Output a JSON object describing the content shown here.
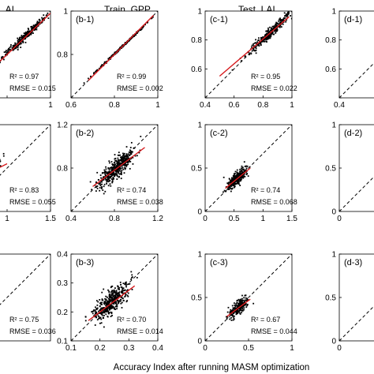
{
  "column_titles": [
    "Train_GPP",
    "Test_LAI"
  ],
  "column_title_partial": "_AI",
  "xlabel": "Accuracy Index after running MASM optimization",
  "legend_r2_label": "R² =",
  "legend_rmse_label": "RMSE =",
  "chart_data": [
    {
      "id": "a-1",
      "type": "scatter",
      "label": "",
      "r2": "0.97",
      "rmse": "0.015",
      "xlim": [
        0.6,
        1.0
      ],
      "ylim": [
        0.6,
        1.0
      ],
      "xticks": [
        "",
        "",
        "1"
      ],
      "yticks": [],
      "fit": [
        [
          0.6,
          0.61
        ],
        [
          1.0,
          0.99
        ]
      ],
      "cluster": {
        "center": [
          0.88,
          0.88
        ],
        "spread": 0.05,
        "noise": 0.008,
        "n": 280
      }
    },
    {
      "id": "b-1",
      "type": "scatter",
      "label": "(b-1)",
      "r2": "0.99",
      "rmse": "0.002",
      "xlim": [
        0.6,
        1.0
      ],
      "ylim": [
        0.6,
        1.0
      ],
      "xticks": [
        "0.6",
        "0.8",
        "1"
      ],
      "yticks": [
        "",
        "0.8",
        "1"
      ],
      "fit": [
        [
          0.68,
          0.68
        ],
        [
          0.98,
          0.98
        ]
      ],
      "cluster": {
        "center": [
          0.83,
          0.83
        ],
        "spread": 0.06,
        "noise": 0.002,
        "n": 260
      }
    },
    {
      "id": "c-1",
      "type": "scatter",
      "label": "(c-1)",
      "r2": "0.95",
      "rmse": "0.022",
      "xlim": [
        0.4,
        1.0
      ],
      "ylim": [
        0.4,
        1.0
      ],
      "xticks": [
        "0.4",
        "0.6",
        "0.8",
        "1"
      ],
      "yticks": [
        "",
        "0.6",
        "0.8",
        "1"
      ],
      "fit": [
        [
          0.5,
          0.55
        ],
        [
          0.98,
          0.96
        ]
      ],
      "cluster": {
        "center": [
          0.85,
          0.85
        ],
        "spread": 0.07,
        "noise": 0.015,
        "n": 300
      }
    },
    {
      "id": "d-1",
      "type": "scatter",
      "label": "(d-1)",
      "r2": "",
      "rmse": "",
      "xlim": [
        0.4,
        1.0
      ],
      "ylim": [
        0.4,
        1.0
      ],
      "xticks": [
        "0.4"
      ],
      "yticks": [
        "",
        "0.6",
        "0.8",
        "1"
      ],
      "fit": null,
      "cluster": null
    },
    {
      "id": "a-2",
      "type": "scatter",
      "label": "",
      "r2": "0.83",
      "rmse": "0.055",
      "xlim": [
        0.5,
        1.5
      ],
      "ylim": [
        0.5,
        1.5
      ],
      "xticks": [
        "",
        "1",
        "1.5"
      ],
      "yticks": [],
      "fit": [
        [
          0.5,
          0.8
        ],
        [
          1.0,
          1.05
        ]
      ],
      "cluster": {
        "center": [
          0.75,
          0.92
        ],
        "spread": 0.08,
        "noise": 0.03,
        "n": 120
      }
    },
    {
      "id": "b-2",
      "type": "scatter",
      "label": "(b-2)",
      "r2": "0.74",
      "rmse": "0.038",
      "xlim": [
        0.4,
        1.2
      ],
      "ylim": [
        0.4,
        1.2
      ],
      "xticks": [
        "0.4",
        "0.8",
        "1.2"
      ],
      "yticks": [
        "",
        "0.8",
        "1.2"
      ],
      "fit": [
        [
          0.6,
          0.63
        ],
        [
          1.08,
          0.99
        ]
      ],
      "cluster": {
        "center": [
          0.82,
          0.8
        ],
        "spread": 0.08,
        "noise": 0.04,
        "n": 420
      }
    },
    {
      "id": "c-2",
      "type": "scatter",
      "label": "(c-2)",
      "r2": "0.74",
      "rmse": "0.068",
      "xlim": [
        0.0,
        1.5
      ],
      "ylim": [
        0.0,
        1.5
      ],
      "xticks": [
        "0",
        "0.5",
        "1",
        "1.5"
      ],
      "yticks": [
        "0",
        "0.5",
        "1"
      ],
      "fit": [
        [
          0.35,
          0.4
        ],
        [
          0.78,
          0.75
        ]
      ],
      "cluster": {
        "center": [
          0.55,
          0.57
        ],
        "spread": 0.08,
        "noise": 0.05,
        "n": 320
      }
    },
    {
      "id": "d-2",
      "type": "scatter",
      "label": "(d-2)",
      "r2": "",
      "rmse": "",
      "xlim": [
        0.0,
        1.5
      ],
      "ylim": [
        0.0,
        1.5
      ],
      "xticks": [
        "0"
      ],
      "yticks": [
        "0",
        "0.5",
        "1"
      ],
      "fit": null,
      "cluster": null
    },
    {
      "id": "a-3",
      "type": "scatter",
      "label": "",
      "r2": "0.75",
      "rmse": "0.036",
      "xlim": [
        0.1,
        0.4
      ],
      "ylim": [
        0.1,
        0.4
      ],
      "xticks": [],
      "yticks": [],
      "fit": null,
      "cluster": null
    },
    {
      "id": "b-3",
      "type": "scatter",
      "label": "(b-3)",
      "r2": "0.70",
      "rmse": "0.014",
      "xlim": [
        0.1,
        0.4
      ],
      "ylim": [
        0.1,
        0.4
      ],
      "xticks": [
        "0.1",
        "0.2",
        "0.3",
        "0.4"
      ],
      "yticks": [
        "0.1",
        "0.2",
        "0.3",
        "0.4"
      ],
      "fit": [
        [
          0.16,
          0.17
        ],
        [
          0.32,
          0.29
        ]
      ],
      "cluster": {
        "center": [
          0.24,
          0.235
        ],
        "spread": 0.028,
        "noise": 0.018,
        "n": 420
      }
    },
    {
      "id": "c-3",
      "type": "scatter",
      "label": "(c-3)",
      "r2": "0.67",
      "rmse": "0.044",
      "xlim": [
        0.0,
        1.0
      ],
      "ylim": [
        0.0,
        1.0
      ],
      "xticks": [
        "0",
        "0.5",
        "1"
      ],
      "yticks": [
        "0",
        "0.5",
        "1"
      ],
      "fit": [
        [
          0.25,
          0.28
        ],
        [
          0.52,
          0.48
        ]
      ],
      "cluster": {
        "center": [
          0.38,
          0.38
        ],
        "spread": 0.045,
        "noise": 0.035,
        "n": 260
      }
    },
    {
      "id": "d-3",
      "type": "scatter",
      "label": "(d-3)",
      "r2": "",
      "rmse": "",
      "xlim": [
        0.0,
        1.0
      ],
      "ylim": [
        0.0,
        1.0
      ],
      "xticks": [
        "0"
      ],
      "yticks": [
        "0",
        "0.5",
        "1"
      ],
      "fit": null,
      "cluster": null
    }
  ]
}
